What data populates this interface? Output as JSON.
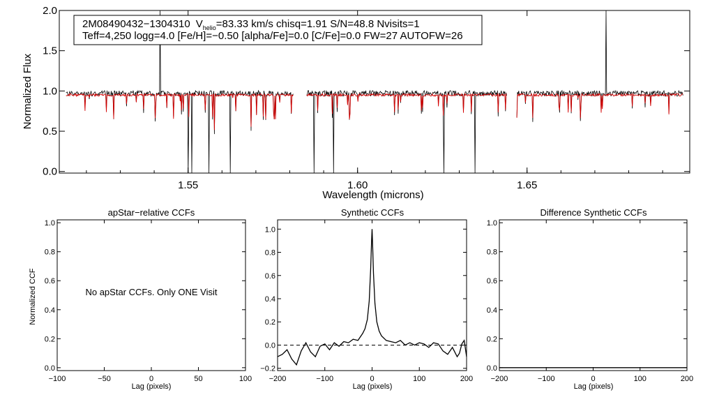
{
  "chart_data": [
    {
      "type": "line",
      "title": "",
      "xlabel": "Wavelength (microns)",
      "ylabel": "Normalized Flux",
      "xlim": [
        1.512,
        1.698
      ],
      "ylim": [
        -0.02,
        2.0
      ],
      "xticks": [
        "1.55",
        "1.60",
        "1.65"
      ],
      "yticks": [
        "0.0",
        "0.5",
        "1.0",
        "1.5",
        "2.0"
      ],
      "annotation": {
        "star_id": "2M08490432−1304310",
        "vhelio_prefix": "V",
        "vhelio_sub": "helio",
        "vhelio_rest": "=83.33 km/s  chisq=1.91  S/N=48.8  Nvisits=1",
        "line2": "Teff=4,250 logg=4.0 [Fe/H]=−0.50 [alpha/Fe]=0.0 [C/Fe]=0.0 FW=27 AUTOFW=26"
      },
      "chip_ranges": [
        [
          1.514,
          1.581
        ],
        [
          1.585,
          1.644
        ],
        [
          1.647,
          1.696
        ]
      ],
      "continuum_level": 0.97,
      "model_level": 0.95,
      "series": [
        {
          "color": "#000000"
        },
        {
          "color": "#d40000"
        }
      ]
    },
    {
      "type": "line",
      "title": "apStar−relative CCFs",
      "xlabel": "Lag (pixels)",
      "ylabel": "Normalized CCF",
      "xlim": [
        -100,
        100
      ],
      "ylim": [
        -0.02,
        1.02
      ],
      "xticks": [
        "−100",
        "−50",
        "0",
        "50",
        "100"
      ],
      "yticks": [
        "0.0",
        "0.2",
        "0.4",
        "0.6",
        "0.8",
        "1.0"
      ],
      "message": "No apStar CCFs.  Only ONE Visit",
      "series": []
    },
    {
      "type": "line",
      "title": "Synthetic CCFs",
      "xlabel": "Lag (pixels)",
      "ylabel": "",
      "xlim": [
        -200,
        200
      ],
      "ylim": [
        -0.22,
        1.08
      ],
      "xticks": [
        "−200",
        "−100",
        "0",
        "100",
        "200"
      ],
      "yticks": [
        "−0.2",
        "0.0",
        "0.2",
        "0.4",
        "0.6",
        "0.8",
        "1.0"
      ],
      "zero_line": true,
      "series": [
        {
          "x": [
            -200,
            -190,
            -180,
            -170,
            -160,
            -150,
            -140,
            -130,
            -120,
            -110,
            -100,
            -90,
            -80,
            -70,
            -60,
            -50,
            -40,
            -30,
            -20,
            -15,
            -10,
            -6,
            -3,
            -1,
            0,
            1,
            3,
            6,
            10,
            15,
            20,
            30,
            40,
            50,
            60,
            70,
            80,
            90,
            100,
            110,
            120,
            130,
            140,
            150,
            160,
            170,
            180,
            185,
            190,
            195,
            200
          ],
          "y": [
            -0.1,
            -0.08,
            -0.04,
            -0.12,
            -0.17,
            -0.05,
            0.02,
            -0.06,
            -0.1,
            -0.01,
            0.01,
            -0.04,
            0.02,
            -0.01,
            0.03,
            0.02,
            0.05,
            0.04,
            0.1,
            0.14,
            0.22,
            0.38,
            0.66,
            0.9,
            1.0,
            0.88,
            0.62,
            0.36,
            0.2,
            0.12,
            0.08,
            0.04,
            0.03,
            0.02,
            0.04,
            0.0,
            0.02,
            0.0,
            0.02,
            0.01,
            -0.02,
            0.02,
            0.01,
            -0.05,
            -0.08,
            -0.02,
            -0.1,
            -0.07,
            0.01,
            0.04,
            -0.1
          ]
        }
      ]
    },
    {
      "type": "line",
      "title": "Difference Synthetic CCFs",
      "xlabel": "Lag (pixels)",
      "ylabel": "",
      "xlim": [
        -200,
        200
      ],
      "ylim": [
        -0.02,
        1.02
      ],
      "xticks": [
        "−200",
        "−100",
        "0",
        "100",
        "200"
      ],
      "yticks": [
        "0.0",
        "0.2",
        "0.4",
        "0.6",
        "0.8",
        "1.0"
      ],
      "series": [
        {
          "x": [
            -200,
            200
          ],
          "y": [
            0,
            0
          ]
        }
      ]
    }
  ]
}
